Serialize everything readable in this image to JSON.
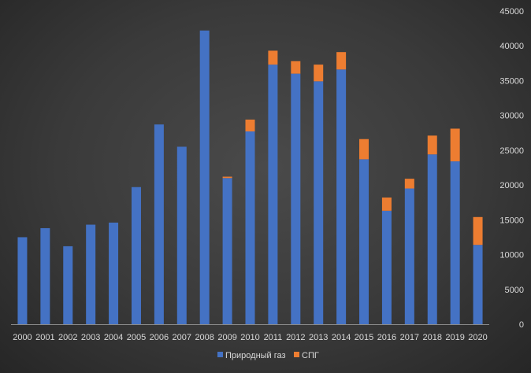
{
  "chart_data": {
    "type": "bar",
    "stacked": true,
    "categories": [
      "2000",
      "2001",
      "2002",
      "2003",
      "2004",
      "2005",
      "2006",
      "2007",
      "2008",
      "2009",
      "2010",
      "2011",
      "2012",
      "2013",
      "2014",
      "2015",
      "2016",
      "2017",
      "2018",
      "2019",
      "2020"
    ],
    "series": [
      {
        "name": "Природный газ",
        "color": "#4472c4",
        "values": [
          12500,
          13800,
          11200,
          14300,
          14600,
          19700,
          28700,
          25500,
          42200,
          21000,
          27700,
          37300,
          36000,
          34900,
          36600,
          23700,
          16300,
          19500,
          24400,
          23400,
          11400
        ]
      },
      {
        "name": "СПГ",
        "color": "#ed7d31",
        "values": [
          0,
          0,
          0,
          0,
          0,
          0,
          0,
          0,
          0,
          200,
          1700,
          2000,
          1800,
          2400,
          2500,
          2900,
          1900,
          1400,
          2700,
          4700,
          4000
        ]
      }
    ],
    "title": "",
    "xlabel": "",
    "ylabel": "",
    "ylim": [
      0,
      45000
    ],
    "yticks": [
      0,
      5000,
      10000,
      15000,
      20000,
      25000,
      30000,
      35000,
      40000,
      45000
    ],
    "y_axis_position": "right",
    "grid": false,
    "legend_position": "bottom"
  }
}
